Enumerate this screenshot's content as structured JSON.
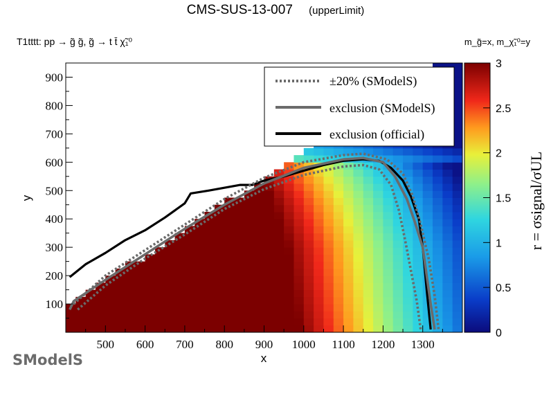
{
  "header": {
    "title": "CMS-SUS-13-007",
    "subtitle": "(upperLimit)",
    "process": "T1tttt: pp → g̃ g̃, g̃ → t t̄ χ̃₁⁰",
    "mass_assignment": "m_g̃=x, m_χ̃₁⁰=y"
  },
  "logo": {
    "text": "SModelS"
  },
  "colors": {
    "excluded": "#7c0000",
    "official_line": "#000000",
    "smodels_line": "#6b6b6b",
    "legend_bg": "#ffffff"
  },
  "chart_data": {
    "type": "heatmap",
    "title": "CMS-SUS-13-007 (upperLimit)",
    "xlabel": "x",
    "ylabel": "y",
    "zlabel": "r = σsignal/σUL",
    "xlim": [
      400,
      1400
    ],
    "ylim": [
      0,
      950
    ],
    "zlim": [
      0,
      3
    ],
    "x_ticks": [
      "500",
      "600",
      "700",
      "800",
      "900",
      "1000",
      "1100",
      "1200",
      "1300"
    ],
    "y_ticks": [
      "100",
      "200",
      "300",
      "400",
      "500",
      "600",
      "700",
      "800",
      "900"
    ],
    "z_ticks": [
      "0",
      "0.5",
      "1",
      "1.5",
      "2",
      "2.5",
      "3"
    ],
    "legend": [
      {
        "label": "±20% (SModelS)",
        "style": "dotted"
      },
      {
        "label": "exclusion (SModelS)",
        "style": "solid-gray"
      },
      {
        "label": "exclusion (official)",
        "style": "solid-black"
      }
    ],
    "series": [
      {
        "name": "exclusion (official)",
        "x": [
          410,
          450,
          500,
          550,
          600,
          650,
          700,
          715,
          760,
          800,
          840,
          870,
          900,
          950,
          1000,
          1050,
          1100,
          1150,
          1190,
          1220,
          1250,
          1270,
          1290,
          1300,
          1310,
          1320
        ],
        "y": [
          195,
          240,
          280,
          325,
          360,
          405,
          455,
          490,
          500,
          510,
          520,
          520,
          535,
          550,
          570,
          590,
          605,
          610,
          605,
          580,
          535,
          480,
          400,
          300,
          150,
          10
        ]
      },
      {
        "name": "exclusion (SModelS)",
        "x": [
          410,
          420,
          500,
          600,
          700,
          800,
          900,
          1000,
          1100,
          1150,
          1200,
          1230,
          1260,
          1280,
          1300,
          1310,
          1320,
          1330
        ],
        "y": [
          80,
          110,
          185,
          275,
          365,
          450,
          525,
          580,
          610,
          615,
          600,
          550,
          470,
          390,
          300,
          200,
          100,
          10
        ]
      },
      {
        "name": "+20% (SModelS)",
        "x": [
          420,
          500,
          600,
          700,
          800,
          900,
          1000,
          1100,
          1150,
          1210,
          1250,
          1275,
          1295,
          1315,
          1330,
          1340
        ],
        "y": [
          100,
          200,
          290,
          380,
          470,
          545,
          600,
          625,
          630,
          610,
          560,
          480,
          380,
          260,
          130,
          10
        ]
      },
      {
        "name": "-20% (SModelS)",
        "x": [
          430,
          500,
          600,
          700,
          800,
          900,
          1000,
          1100,
          1150,
          1190,
          1220,
          1240,
          1255,
          1270,
          1285,
          1295
        ],
        "y": [
          80,
          165,
          260,
          345,
          435,
          505,
          555,
          585,
          590,
          575,
          520,
          430,
          330,
          220,
          110,
          10
        ]
      }
    ]
  }
}
